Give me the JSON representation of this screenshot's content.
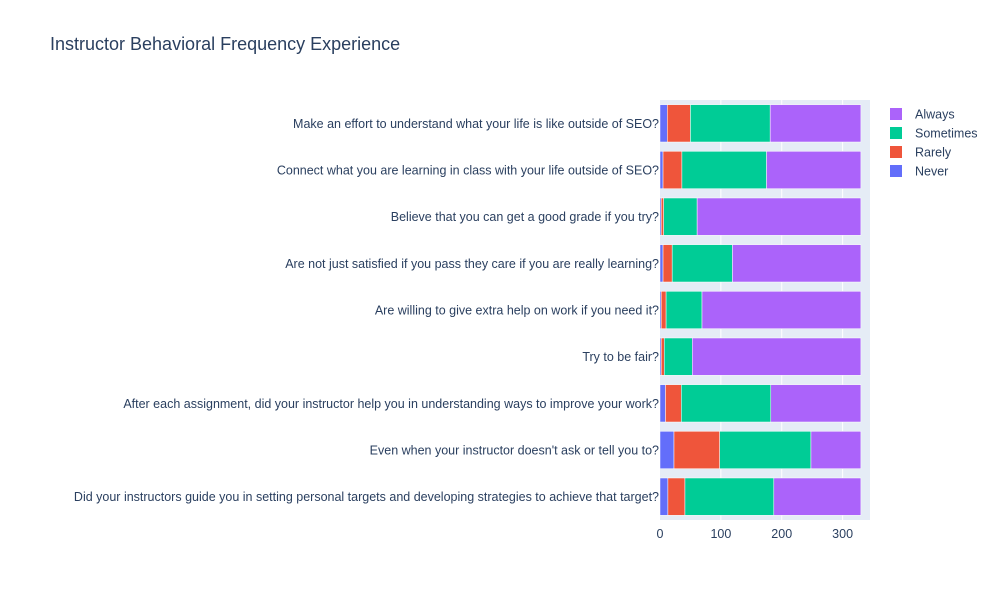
{
  "chart_data": {
    "type": "bar",
    "orientation": "horizontal",
    "stacked": true,
    "title": "Instructor Behavioral Frequency Experience",
    "xlabel": "",
    "ylabel": "",
    "xlim": [
      0,
      345
    ],
    "x_ticks": [
      0,
      100,
      200,
      300
    ],
    "grid": true,
    "legend_position": "top-right",
    "categories": [
      "Make an effort to understand what your life is like outside of SEO?",
      "Connect what you are learning in class with your life outside of SEO?",
      "Believe that you can get a good grade if you try?",
      "Are not just satisfied if you pass they care if you are really learning?",
      "Are willing to give extra help on work if you need it?",
      "Try to be fair?",
      "After each assignment, did your instructor help you in understanding ways to improve your work?",
      "Even when your instructor doesn't ask or tell you to?",
      "Did your instructors guide you in setting personal targets and developing strategies to achieve that target?"
    ],
    "series": [
      {
        "name": "Never",
        "color": "#636efa",
        "values": [
          12,
          5,
          2,
          5,
          2,
          2,
          9,
          23,
          13
        ]
      },
      {
        "name": "Rarely",
        "color": "#ef553b",
        "values": [
          38,
          31,
          4,
          15,
          8,
          5,
          26,
          75,
          28
        ]
      },
      {
        "name": "Sometimes",
        "color": "#00cc96",
        "values": [
          131,
          139,
          55,
          99,
          59,
          46,
          147,
          150,
          146
        ]
      },
      {
        "name": "Always",
        "color": "#ab63fa",
        "values": [
          149,
          155,
          269,
          211,
          261,
          277,
          148,
          82,
          143
        ]
      }
    ],
    "legend_order": [
      "Always",
      "Sometimes",
      "Rarely",
      "Never"
    ]
  },
  "colors": {
    "plot_bg": "#e5ecf6",
    "grid": "#ffffff",
    "text": "#2a3f5f"
  }
}
